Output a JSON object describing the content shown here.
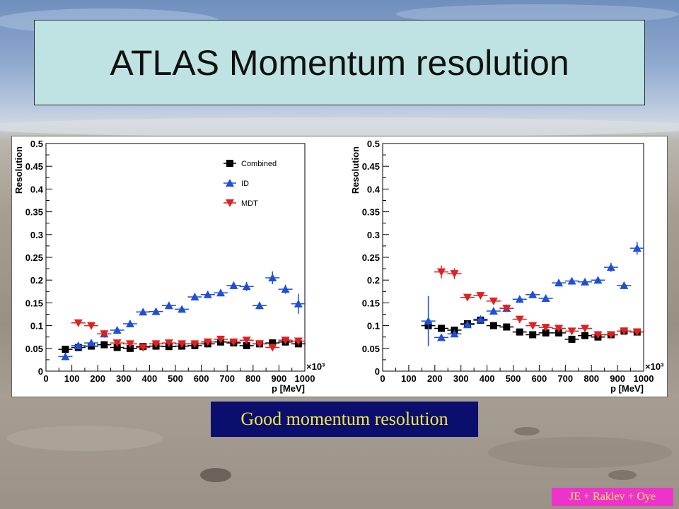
{
  "slide": {
    "title": "ATLAS Momentum resolution",
    "caption": "Good momentum resolution",
    "credit": "JE + Raklev + Oye"
  },
  "colors": {
    "title_bg": "#bfe3e3",
    "caption_bg": "#0a0f6e",
    "caption_text": "#f2e640",
    "credit_bg": "#ee33cc",
    "combined": "#000000",
    "id": "#1f4fd8",
    "mdt": "#e02020"
  },
  "chart_data": [
    {
      "type": "scatter",
      "xlabel": "p [MeV]",
      "ylabel": "Resolution",
      "x_multiplier": "×10³",
      "xlim": [
        0,
        1000000
      ],
      "ylim": [
        0,
        0.5
      ],
      "xticks": [
        "0",
        "100",
        "200",
        "300",
        "400",
        "500",
        "600",
        "700",
        "800",
        "900",
        "1000"
      ],
      "yticks": [
        "0",
        "0.05",
        "0.1",
        "0.15",
        "0.2",
        "0.25",
        "0.3",
        "0.35",
        "0.4",
        "0.45",
        "0.5"
      ],
      "legend_position": "top-right",
      "series": [
        {
          "name": "Combined",
          "marker": "square",
          "x": [
            75000,
            125000,
            175000,
            225000,
            275000,
            325000,
            375000,
            425000,
            475000,
            525000,
            575000,
            625000,
            675000,
            725000,
            775000,
            825000,
            875000,
            925000,
            975000
          ],
          "y": [
            0.048,
            0.052,
            0.055,
            0.058,
            0.052,
            0.05,
            0.054,
            0.055,
            0.054,
            0.055,
            0.056,
            0.06,
            0.064,
            0.062,
            0.056,
            0.06,
            0.062,
            0.064,
            0.06
          ],
          "yerr": [
            0.006,
            0.005,
            0.005,
            0.005,
            0.004,
            0.004,
            0.004,
            0.004,
            0.004,
            0.004,
            0.004,
            0.004,
            0.004,
            0.004,
            0.004,
            0.004,
            0.004,
            0.004,
            0.004
          ]
        },
        {
          "name": "ID",
          "marker": "triangle-up",
          "x": [
            75000,
            125000,
            175000,
            225000,
            275000,
            325000,
            375000,
            425000,
            475000,
            525000,
            575000,
            625000,
            675000,
            725000,
            775000,
            825000,
            875000,
            925000,
            975000
          ],
          "y": [
            0.032,
            0.056,
            0.062,
            0.082,
            0.09,
            0.104,
            0.13,
            0.131,
            0.144,
            0.136,
            0.163,
            0.168,
            0.172,
            0.188,
            0.186,
            0.144,
            0.205,
            0.18,
            0.148
          ],
          "yerr": [
            0.008,
            0.006,
            0.006,
            0.006,
            0.006,
            0.006,
            0.005,
            0.005,
            0.005,
            0.005,
            0.005,
            0.005,
            0.005,
            0.008,
            0.01,
            0.008,
            0.014,
            0.01,
            0.022
          ]
        },
        {
          "name": "MDT",
          "marker": "triangle-down",
          "x": [
            125000,
            175000,
            225000,
            275000,
            325000,
            375000,
            425000,
            475000,
            525000,
            575000,
            625000,
            675000,
            725000,
            775000,
            825000,
            875000,
            925000,
            975000
          ],
          "y": [
            0.106,
            0.1,
            0.082,
            0.062,
            0.06,
            0.052,
            0.06,
            0.062,
            0.06,
            0.06,
            0.064,
            0.07,
            0.064,
            0.068,
            0.06,
            0.052,
            0.068,
            0.066
          ],
          "yerr": [
            0.005,
            0.005,
            0.005,
            0.004,
            0.004,
            0.004,
            0.004,
            0.004,
            0.004,
            0.004,
            0.004,
            0.004,
            0.004,
            0.004,
            0.004,
            0.004,
            0.004,
            0.004
          ]
        }
      ]
    },
    {
      "type": "scatter",
      "xlabel": "p [MeV]",
      "ylabel": "Resolution",
      "x_multiplier": "×10³",
      "xlim": [
        0,
        1000000
      ],
      "ylim": [
        0,
        0.5
      ],
      "xticks": [
        "0",
        "100",
        "200",
        "300",
        "400",
        "500",
        "600",
        "700",
        "800",
        "900",
        "1000"
      ],
      "yticks": [
        "0",
        "0.05",
        "0.1",
        "0.15",
        "0.2",
        "0.25",
        "0.3",
        "0.35",
        "0.4",
        "0.45",
        "0.5"
      ],
      "series": [
        {
          "name": "Combined",
          "marker": "square",
          "x": [
            175000,
            225000,
            275000,
            325000,
            375000,
            425000,
            475000,
            525000,
            575000,
            625000,
            675000,
            725000,
            775000,
            825000,
            875000,
            925000,
            975000
          ],
          "y": [
            0.1,
            0.094,
            0.09,
            0.104,
            0.112,
            0.1,
            0.097,
            0.086,
            0.08,
            0.084,
            0.084,
            0.07,
            0.078,
            0.075,
            0.08,
            0.088,
            0.086
          ],
          "yerr": [
            0.008,
            0.005,
            0.005,
            0.005,
            0.005,
            0.005,
            0.004,
            0.004,
            0.004,
            0.004,
            0.004,
            0.004,
            0.004,
            0.004,
            0.004,
            0.004,
            0.004
          ]
        },
        {
          "name": "ID",
          "marker": "triangle-up",
          "x": [
            175000,
            225000,
            275000,
            325000,
            375000,
            425000,
            475000,
            525000,
            575000,
            625000,
            675000,
            725000,
            775000,
            825000,
            875000,
            925000,
            975000
          ],
          "y": [
            0.11,
            0.074,
            0.082,
            0.102,
            0.114,
            0.132,
            0.138,
            0.158,
            0.168,
            0.16,
            0.194,
            0.198,
            0.196,
            0.2,
            0.228,
            0.188,
            0.27
          ],
          "yerr": [
            0.055,
            0.006,
            0.006,
            0.006,
            0.006,
            0.006,
            0.006,
            0.006,
            0.006,
            0.006,
            0.006,
            0.006,
            0.006,
            0.006,
            0.01,
            0.008,
            0.014
          ]
        },
        {
          "name": "MDT",
          "marker": "triangle-down",
          "x": [
            225000,
            275000,
            325000,
            375000,
            425000,
            475000,
            525000,
            575000,
            625000,
            675000,
            725000,
            775000,
            825000,
            875000,
            925000,
            975000
          ],
          "y": [
            0.218,
            0.214,
            0.162,
            0.166,
            0.154,
            0.138,
            0.114,
            0.1,
            0.096,
            0.094,
            0.088,
            0.094,
            0.08,
            0.08,
            0.088,
            0.086
          ],
          "yerr": [
            0.014,
            0.012,
            0.006,
            0.006,
            0.006,
            0.005,
            0.005,
            0.004,
            0.004,
            0.004,
            0.004,
            0.004,
            0.004,
            0.004,
            0.004,
            0.004
          ]
        }
      ]
    }
  ]
}
